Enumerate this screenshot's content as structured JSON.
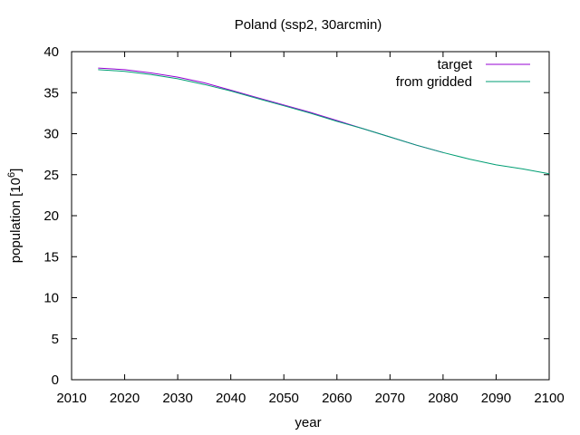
{
  "chart_data": {
    "type": "line",
    "title": "Poland (ssp2, 30arcmin)",
    "xlabel": "year",
    "ylabel_main": "population [10",
    "ylabel_exp": "6",
    "ylabel_close": "]",
    "xlim": [
      2010,
      2100
    ],
    "ylim": [
      0,
      40
    ],
    "xticks": [
      2010,
      2020,
      2030,
      2040,
      2050,
      2060,
      2070,
      2080,
      2090,
      2100
    ],
    "yticks": [
      0,
      5,
      10,
      15,
      20,
      25,
      30,
      35,
      40
    ],
    "legend_position": "top-right",
    "series": [
      {
        "name": "target",
        "color": "#9400d3",
        "x": [
          2015,
          2020,
          2025,
          2030,
          2035,
          2040,
          2045,
          2050,
          2055,
          2060,
          2065,
          2070,
          2075,
          2080
        ],
        "y": [
          38.0,
          37.8,
          37.4,
          36.9,
          36.2,
          35.3,
          34.4,
          33.5,
          32.6,
          31.6,
          30.6,
          29.6,
          28.6,
          27.7
        ]
      },
      {
        "name": "from gridded",
        "color": "#009e73",
        "x": [
          2015,
          2020,
          2025,
          2030,
          2035,
          2040,
          2045,
          2050,
          2055,
          2060,
          2065,
          2070,
          2075,
          2080,
          2085,
          2090,
          2095,
          2100
        ],
        "y": [
          37.8,
          37.6,
          37.2,
          36.7,
          36.0,
          35.2,
          34.3,
          33.4,
          32.5,
          31.5,
          30.6,
          29.6,
          28.6,
          27.7,
          26.9,
          26.2,
          25.7,
          25.1
        ]
      }
    ]
  }
}
